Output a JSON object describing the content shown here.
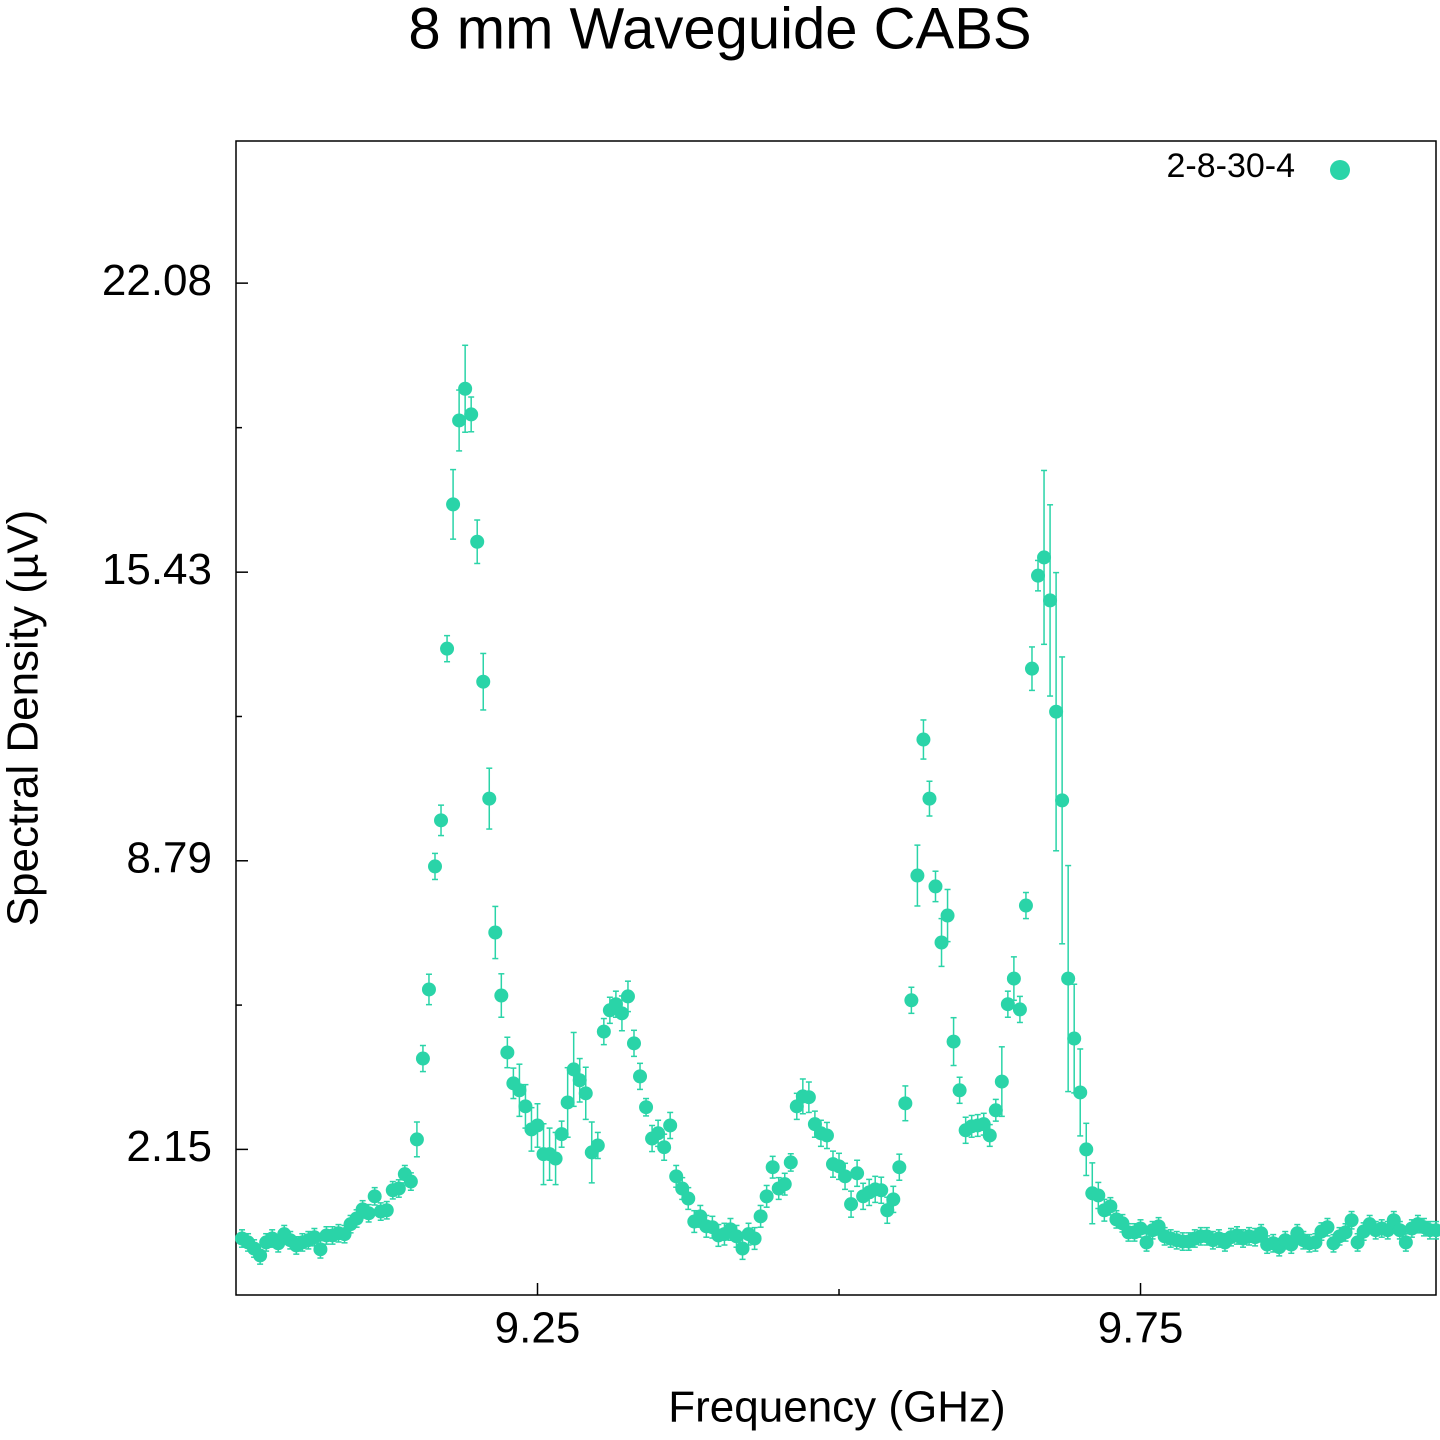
{
  "chart_data": {
    "type": "scatter",
    "title": "8 mm Waveguide CABS",
    "x_label": "Frequency (GHz)",
    "y_label": "Spectral Density (µV)",
    "xlim": [
      9.0,
      9.995
    ],
    "ylim": [
      -1.2,
      25.35
    ],
    "xticks": [
      9.25,
      9.75
    ],
    "xminorticks": [
      9.5
    ],
    "yticks": [
      2.15,
      8.79,
      15.43,
      22.08
    ],
    "yminorticks": [
      5.47,
      12.11,
      18.755
    ],
    "legend": "top-right",
    "x": [
      9.005,
      9.01,
      9.015,
      9.02,
      9.025,
      9.03,
      9.035,
      9.04,
      9.045,
      9.05,
      9.055,
      9.06,
      9.065,
      9.07,
      9.075,
      9.08,
      9.085,
      9.09,
      9.095,
      9.1,
      9.105,
      9.11,
      9.115,
      9.12,
      9.125,
      9.13,
      9.135,
      9.14,
      9.145,
      9.15,
      9.155,
      9.16,
      9.165,
      9.17,
      9.175,
      9.18,
      9.185,
      9.19,
      9.195,
      9.2,
      9.205,
      9.21,
      9.215,
      9.22,
      9.225,
      9.23,
      9.235,
      9.24,
      9.245,
      9.25,
      9.255,
      9.26,
      9.265,
      9.27,
      9.275,
      9.28,
      9.285,
      9.29,
      9.295,
      9.3,
      9.305,
      9.31,
      9.315,
      9.32,
      9.325,
      9.33,
      9.335,
      9.34,
      9.345,
      9.35,
      9.355,
      9.36,
      9.365,
      9.37,
      9.375,
      9.38,
      9.385,
      9.39,
      9.395,
      9.4,
      9.405,
      9.41,
      9.415,
      9.42,
      9.425,
      9.43,
      9.435,
      9.44,
      9.445,
      9.45,
      9.455,
      9.46,
      9.465,
      9.47,
      9.475,
      9.48,
      9.485,
      9.49,
      9.495,
      9.5,
      9.505,
      9.51,
      9.515,
      9.52,
      9.525,
      9.53,
      9.535,
      9.54,
      9.545,
      9.55,
      9.555,
      9.56,
      9.565,
      9.57,
      9.575,
      9.58,
      9.585,
      9.59,
      9.595,
      9.6,
      9.605,
      9.61,
      9.615,
      9.62,
      9.625,
      9.63,
      9.635,
      9.64,
      9.645,
      9.65,
      9.655,
      9.66,
      9.665,
      9.67,
      9.675,
      9.68,
      9.685,
      9.69,
      9.695,
      9.7,
      9.705,
      9.71,
      9.715,
      9.72,
      9.725,
      9.73,
      9.735,
      9.74,
      9.745,
      9.75,
      9.755,
      9.76,
      9.765,
      9.77,
      9.775,
      9.78,
      9.785,
      9.79,
      9.795,
      9.8,
      9.805,
      9.81,
      9.815,
      9.82,
      9.825,
      9.83,
      9.835,
      9.84,
      9.845,
      9.85,
      9.855,
      9.86,
      9.865,
      9.87,
      9.875,
      9.88,
      9.885,
      9.89,
      9.895,
      9.9,
      9.905,
      9.91,
      9.915,
      9.92,
      9.925,
      9.93,
      9.935,
      9.94,
      9.945,
      9.95,
      9.955,
      9.96,
      9.965,
      9.97,
      9.975,
      9.98,
      9.985,
      9.99,
      9.995
    ],
    "series": [
      {
        "name": "2-8-30-4",
        "color": "#2ad4a8",
        "values": [
          0.1,
          0.01,
          -0.13,
          -0.29,
          0.01,
          0.1,
          -0.01,
          0.2,
          0.06,
          -0.06,
          0.01,
          0.06,
          0.13,
          -0.15,
          0.17,
          0.17,
          0.22,
          0.2,
          0.43,
          0.56,
          0.77,
          0.68,
          1.07,
          0.72,
          0.75,
          1.21,
          1.25,
          1.58,
          1.41,
          2.38,
          4.24,
          5.83,
          8.66,
          9.72,
          13.67,
          16.99,
          18.92,
          19.65,
          19.06,
          16.13,
          12.91,
          10.22,
          7.14,
          5.69,
          4.38,
          3.67,
          3.51,
          3.14,
          2.61,
          2.7,
          2.04,
          2.04,
          1.94,
          2.5,
          3.23,
          3.99,
          3.74,
          3.44,
          2.08,
          2.24,
          4.86,
          5.35,
          5.49,
          5.28,
          5.67,
          4.59,
          3.83,
          3.12,
          2.4,
          2.52,
          2.2,
          2.7,
          1.53,
          1.25,
          1.02,
          0.49,
          0.61,
          0.38,
          0.36,
          0.17,
          0.2,
          0.31,
          0.15,
          -0.13,
          0.2,
          0.1,
          0.61,
          1.07,
          1.74,
          1.25,
          1.35,
          1.85,
          3.14,
          3.37,
          3.35,
          2.73,
          2.52,
          2.47,
          1.81,
          1.76,
          1.53,
          0.89,
          1.6,
          1.07,
          1.16,
          1.23,
          1.21,
          0.75,
          1.0,
          1.74,
          3.21,
          5.58,
          8.45,
          11.58,
          10.22,
          8.2,
          6.91,
          7.53,
          4.63,
          3.51,
          2.59,
          2.68,
          2.7,
          2.73,
          2.47,
          3.05,
          3.71,
          5.49,
          6.08,
          5.37,
          7.76,
          13.21,
          15.35,
          15.77,
          14.78,
          12.22,
          10.18,
          6.08,
          4.7,
          3.46,
          2.15,
          1.14,
          1.09,
          0.75,
          0.84,
          0.54,
          0.45,
          0.24,
          0.24,
          0.33,
          0.01,
          0.29,
          0.38,
          0.15,
          0.1,
          0.06,
          0.03,
          0.03,
          0.1,
          0.15,
          0.15,
          0.06,
          0.1,
          0.01,
          0.13,
          0.17,
          0.1,
          0.15,
          0.13,
          0.22,
          -0.04,
          -0.01,
          -0.1,
          0.06,
          -0.04,
          0.22,
          0.06,
          -0.01,
          0.01,
          0.26,
          0.36,
          -0.01,
          0.15,
          0.24,
          0.52,
          0.01,
          0.26,
          0.43,
          0.29,
          0.33,
          0.29,
          0.52,
          0.29,
          0.01,
          0.33,
          0.43,
          0.36,
          0.29,
          0.29
        ],
        "errors": [
          0.2,
          0.2,
          0.2,
          0.2,
          0.2,
          0.2,
          0.2,
          0.2,
          0.2,
          0.2,
          0.2,
          0.2,
          0.2,
          0.2,
          0.2,
          0.2,
          0.2,
          0.2,
          0.2,
          0.2,
          0.2,
          0.2,
          0.2,
          0.2,
          0.2,
          0.2,
          0.2,
          0.2,
          0.2,
          0.4,
          0.3,
          0.35,
          0.3,
          0.35,
          0.3,
          0.8,
          0.7,
          1.0,
          0.4,
          0.5,
          0.65,
          0.7,
          0.6,
          0.5,
          0.35,
          0.35,
          0.6,
          0.5,
          0.5,
          0.5,
          0.7,
          0.6,
          0.6,
          0.3,
          0.8,
          0.85,
          0.5,
          0.6,
          0.7,
          0.3,
          0.3,
          0.3,
          0.3,
          0.4,
          0.35,
          0.3,
          0.3,
          0.2,
          0.3,
          0.3,
          0.3,
          0.3,
          0.25,
          0.25,
          0.25,
          0.25,
          0.25,
          0.25,
          0.25,
          0.25,
          0.25,
          0.25,
          0.25,
          0.25,
          0.25,
          0.25,
          0.25,
          0.25,
          0.25,
          0.25,
          0.25,
          0.2,
          0.3,
          0.4,
          0.35,
          0.3,
          0.3,
          0.3,
          0.3,
          0.3,
          0.3,
          0.3,
          0.3,
          0.3,
          0.3,
          0.3,
          0.3,
          0.3,
          0.3,
          0.3,
          0.4,
          0.3,
          0.7,
          0.45,
          0.4,
          0.35,
          0.55,
          0.6,
          0.55,
          0.3,
          0.3,
          0.25,
          0.25,
          0.25,
          0.25,
          0.25,
          0.8,
          0.3,
          0.5,
          0.3,
          0.3,
          0.5,
          0.35,
          2.0,
          2.2,
          3.2,
          3.3,
          2.6,
          1.25,
          1.0,
          0.6,
          0.7,
          0.3,
          0.25,
          0.2,
          0.2,
          0.2,
          0.2,
          0.2,
          0.2,
          0.2,
          0.2,
          0.2,
          0.2,
          0.2,
          0.2,
          0.2,
          0.2,
          0.2,
          0.2,
          0.2,
          0.2,
          0.2,
          0.2,
          0.2,
          0.2,
          0.2,
          0.2,
          0.2,
          0.2,
          0.2,
          0.2,
          0.2,
          0.2,
          0.2,
          0.2,
          0.2,
          0.2,
          0.2,
          0.2,
          0.2,
          0.2,
          0.2,
          0.2,
          0.2,
          0.2,
          0.2,
          0.2,
          0.2,
          0.2,
          0.2,
          0.2,
          0.2,
          0.2,
          0.2,
          0.2,
          0.2,
          0.2,
          0.2
        ]
      }
    ]
  }
}
